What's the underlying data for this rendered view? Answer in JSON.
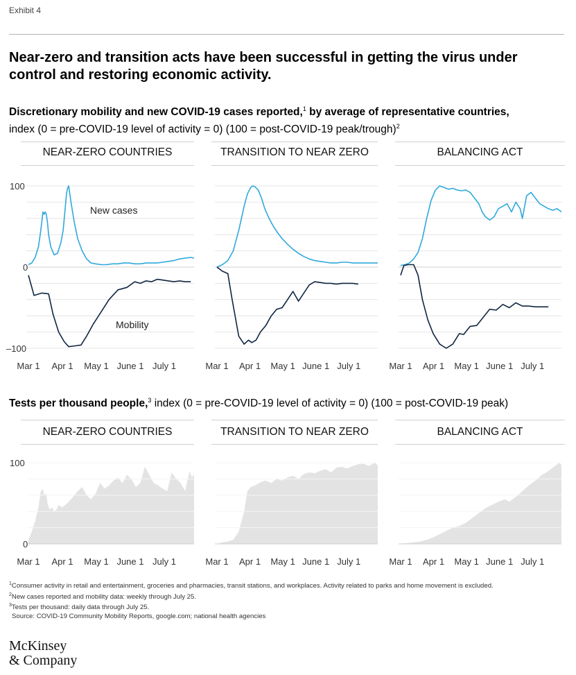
{
  "exhibit_label": "Exhibit 4",
  "headline": "Near-zero and transition acts have been successful in getting the virus under control and restoring economic activity.",
  "subtitle1": {
    "bold": "Discretionary mobility and new COVID-19 cases reported,",
    "sup1": "1",
    "bold_tail": " by average of representative countries,",
    "line2": "index (0 = pre-COVID-19 level of activity = 0) (100 = post-COVID-19 peak/trough)",
    "sup2": "2"
  },
  "subtitle2": {
    "bold": "Tests per thousand people,",
    "sup": "3",
    "rest": " index (0 = pre-COVID-19 level of activity = 0) (100 = post-COVID-19 peak)"
  },
  "colors": {
    "cases": "#2fa8dc",
    "mobility": "#0f2540",
    "tests": "#e3e3e3",
    "grid": "#e4e4e4",
    "zero": "#cfcfcf"
  },
  "chart_data": [
    {
      "type": "line",
      "title": "NEAR-ZERO COUNTRIES",
      "x_ticks": [
        "Mar 1",
        "Apr 1",
        "May 1",
        "June 1",
        "July 1"
      ],
      "y_ticks": [
        "100",
        "0",
        "–100"
      ],
      "ylim": [
        -100,
        100
      ],
      "annotations": {
        "cases": "New cases",
        "mobility": "Mobility"
      },
      "series": [
        {
          "name": "New cases",
          "x": [
            0,
            3,
            6,
            9,
            11,
            13,
            14,
            15,
            16,
            17,
            18,
            20,
            23,
            26,
            29,
            31,
            33,
            34,
            35,
            36,
            38,
            41,
            44,
            48,
            52,
            56,
            60,
            65,
            70,
            75,
            80,
            85,
            90,
            95,
            100,
            105,
            110,
            115,
            120,
            125,
            130,
            135,
            140,
            145,
            148
          ],
          "values": [
            3,
            5,
            12,
            25,
            45,
            68,
            65,
            68,
            65,
            55,
            40,
            25,
            15,
            17,
            30,
            45,
            75,
            90,
            97,
            100,
            80,
            55,
            35,
            20,
            10,
            5,
            4,
            3,
            3,
            4,
            4,
            5,
            5,
            4,
            4,
            5,
            5,
            5,
            6,
            7,
            8,
            10,
            11,
            12,
            11
          ]
        },
        {
          "name": "Mobility",
          "x": [
            0,
            5,
            12,
            18,
            22,
            27,
            32,
            36,
            42,
            47,
            52,
            58,
            65,
            72,
            80,
            88,
            95,
            100,
            105,
            110,
            115,
            120,
            125,
            130,
            135,
            140,
            145
          ],
          "values": [
            -10,
            -35,
            -32,
            -33,
            -58,
            -80,
            -92,
            -98,
            -97,
            -96,
            -85,
            -70,
            -55,
            -40,
            -28,
            -25,
            -18,
            -20,
            -17,
            -18,
            -15,
            -16,
            -17,
            -18,
            -17,
            -18,
            -18
          ]
        }
      ]
    },
    {
      "type": "line",
      "title": "TRANSITION TO NEAR ZERO",
      "x_ticks": [
        "Mar 1",
        "Apr 1",
        "May 1",
        "June 1",
        "July 1"
      ],
      "y_ticks": [],
      "ylim": [
        -100,
        100
      ],
      "series": [
        {
          "name": "New cases",
          "x": [
            0,
            5,
            10,
            15,
            20,
            25,
            28,
            31,
            33,
            35,
            38,
            41,
            44,
            48,
            52,
            56,
            60,
            65,
            70,
            75,
            80,
            85,
            90,
            95,
            100,
            105,
            110,
            115,
            120,
            125,
            130,
            135,
            140,
            145,
            148
          ],
          "values": [
            0,
            3,
            8,
            20,
            45,
            75,
            90,
            98,
            100,
            99,
            95,
            85,
            72,
            60,
            50,
            42,
            35,
            28,
            22,
            17,
            13,
            10,
            8,
            7,
            6,
            5,
            5,
            6,
            6,
            5,
            5,
            5,
            5,
            5,
            5
          ]
        },
        {
          "name": "Mobility",
          "x": [
            0,
            5,
            10,
            14,
            20,
            25,
            29,
            32,
            36,
            40,
            45,
            50,
            55,
            60,
            65,
            70,
            75,
            80,
            85,
            90,
            95,
            100,
            105,
            110,
            115,
            120,
            125,
            130
          ],
          "values": [
            0,
            -5,
            -8,
            -40,
            -85,
            -95,
            -90,
            -93,
            -90,
            -80,
            -72,
            -60,
            -52,
            -50,
            -40,
            -30,
            -42,
            -32,
            -22,
            -18,
            -19,
            -20,
            -20,
            -21,
            -20,
            -20,
            -20,
            -21
          ]
        }
      ]
    },
    {
      "type": "line",
      "title": "BALANCING ACT",
      "x_ticks": [
        "Mar 1",
        "Apr 1",
        "May 1",
        "June 1",
        "July 1"
      ],
      "y_ticks": [],
      "ylim": [
        -100,
        100
      ],
      "series": [
        {
          "name": "New cases",
          "x": [
            0,
            4,
            8,
            12,
            16,
            20,
            24,
            28,
            32,
            36,
            40,
            44,
            48,
            52,
            56,
            60,
            64,
            68,
            72,
            75,
            78,
            82,
            86,
            90,
            94,
            98,
            102,
            106,
            110,
            112,
            116,
            120,
            124,
            128,
            132,
            136,
            140,
            144,
            148
          ],
          "values": [
            2,
            3,
            5,
            10,
            18,
            35,
            60,
            82,
            95,
            100,
            98,
            96,
            97,
            95,
            94,
            95,
            92,
            85,
            78,
            68,
            62,
            58,
            62,
            72,
            75,
            78,
            68,
            80,
            72,
            60,
            88,
            92,
            85,
            78,
            75,
            72,
            70,
            72,
            68
          ]
        },
        {
          "name": "Mobility",
          "x": [
            0,
            3,
            7,
            12,
            16,
            20,
            25,
            30,
            36,
            42,
            48,
            54,
            58,
            64,
            70,
            76,
            82,
            88,
            94,
            100,
            106,
            112,
            118,
            124,
            130,
            136
          ],
          "values": [
            -10,
            2,
            3,
            3,
            -10,
            -40,
            -65,
            -82,
            -95,
            -100,
            -95,
            -82,
            -83,
            -73,
            -72,
            -62,
            -52,
            -53,
            -46,
            -50,
            -44,
            -48,
            -48,
            -49,
            -49,
            -49
          ]
        }
      ]
    },
    {
      "type": "area",
      "title": "NEAR-ZERO COUNTRIES",
      "x_ticks": [
        "Mar 1",
        "Apr 1",
        "May 1",
        "June 1",
        "July 1"
      ],
      "y_ticks": [
        "100",
        "0"
      ],
      "ylim": [
        0,
        100
      ],
      "series": [
        {
          "name": "Tests",
          "x": [
            0,
            3,
            6,
            9,
            11,
            13,
            14,
            16,
            17,
            19,
            21,
            23,
            25,
            27,
            30,
            33,
            36,
            40,
            44,
            48,
            52,
            56,
            60,
            64,
            68,
            72,
            76,
            80,
            84,
            88,
            92,
            96,
            100,
            104,
            108,
            112,
            116,
            120,
            124,
            128,
            132,
            136,
            140,
            144,
            146,
            148
          ],
          "values": [
            5,
            15,
            28,
            45,
            65,
            68,
            60,
            62,
            50,
            42,
            45,
            40,
            42,
            48,
            45,
            48,
            52,
            58,
            65,
            70,
            60,
            55,
            62,
            75,
            68,
            72,
            78,
            82,
            75,
            85,
            80,
            70,
            75,
            95,
            85,
            75,
            72,
            68,
            65,
            88,
            80,
            75,
            65,
            90,
            82,
            85
          ]
        }
      ]
    },
    {
      "type": "area",
      "title": "TRANSITION TO NEAR ZERO",
      "x_ticks": [
        "Mar 1",
        "Apr 1",
        "May 1",
        "June 1",
        "July 1"
      ],
      "y_ticks": [],
      "ylim": [
        0,
        100
      ],
      "series": [
        {
          "name": "Tests",
          "x": [
            0,
            5,
            10,
            15,
            20,
            25,
            28,
            31,
            35,
            40,
            45,
            50,
            55,
            60,
            65,
            70,
            75,
            80,
            85,
            90,
            95,
            100,
            105,
            110,
            115,
            120,
            125,
            130,
            135,
            140,
            145,
            148
          ],
          "values": [
            0,
            2,
            3,
            5,
            15,
            40,
            65,
            70,
            72,
            76,
            78,
            75,
            80,
            78,
            82,
            84,
            80,
            86,
            88,
            87,
            90,
            92,
            88,
            94,
            95,
            93,
            96,
            98,
            99,
            96,
            100,
            97
          ]
        }
      ]
    },
    {
      "type": "area",
      "title": "BALANCING ACT",
      "x_ticks": [
        "Mar 1",
        "Apr 1",
        "May 1",
        "June 1",
        "July 1"
      ],
      "y_ticks": [],
      "ylim": [
        0,
        100
      ],
      "series": [
        {
          "name": "Tests",
          "x": [
            0,
            6,
            12,
            18,
            24,
            30,
            36,
            42,
            48,
            54,
            60,
            66,
            72,
            78,
            84,
            90,
            96,
            100,
            106,
            112,
            118,
            124,
            130,
            134,
            138,
            142,
            146,
            148
          ],
          "values": [
            0,
            1,
            2,
            3,
            5,
            8,
            12,
            16,
            20,
            22,
            26,
            32,
            38,
            44,
            48,
            52,
            55,
            52,
            58,
            65,
            72,
            78,
            85,
            88,
            92,
            96,
            100,
            97
          ]
        }
      ]
    }
  ],
  "footnotes": [
    {
      "sup": "1",
      "text": "Consumer activity in retail and entertainment, groceries and pharmacies, transit stations, and workplaces. Activity related to parks and home movement is excluded."
    },
    {
      "sup": "2",
      "text": "New cases reported and mobility data: weekly through July 25."
    },
    {
      "sup": "3",
      "text": "Tests per thousand: daily data through July 25."
    }
  ],
  "source": "Source: COVID-19 Community Mobility Reports, google.com; national health agencies",
  "logo": {
    "line1": "McKinsey",
    "line2": "& Company"
  }
}
